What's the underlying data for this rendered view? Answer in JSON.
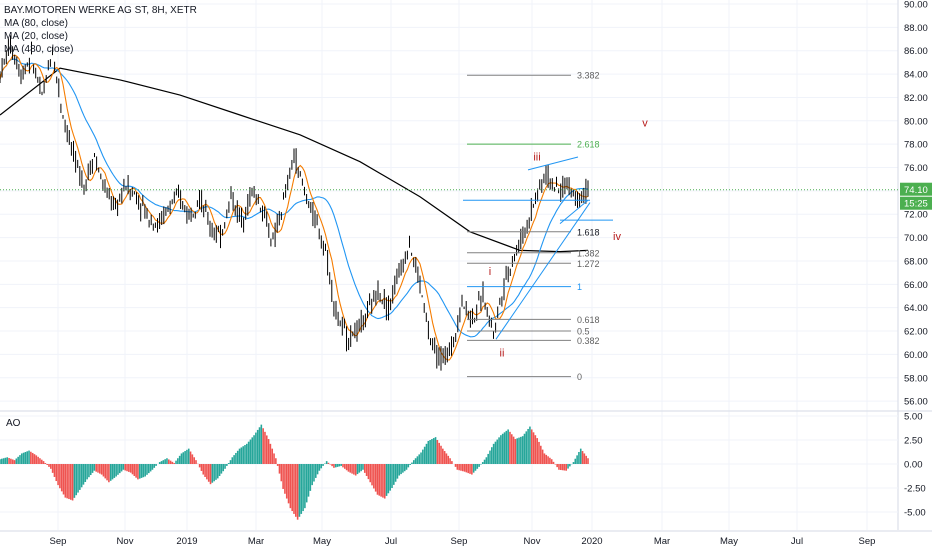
{
  "legend": {
    "symbol": "BAY.MOTOREN WERKE AG ST, 8H, XETR",
    "ma1": "MA (80, close)",
    "ma2": "MA (20, close)",
    "ma3": "MA (480, close)"
  },
  "ao_label": "AO",
  "colors": {
    "price_line": "#4caf50",
    "bar": "#000000",
    "ma80": "#2196f3",
    "ma20": "#f57c00",
    "ma480": "#000000",
    "fib": "#808080",
    "fib_green": "#4caf50",
    "fib_blue": "#2196f3",
    "wave": "#b71c1c",
    "ao_up": "#26a69a",
    "ao_down": "#ef5350"
  },
  "chart_data": [
    {
      "type": "line",
      "name": "price",
      "x_ticks": [
        "Sep",
        "Nov",
        "2019",
        "Mar",
        "May",
        "Jul",
        "Sep",
        "Nov",
        "2020",
        "Mar",
        "May",
        "Jul",
        "Sep"
      ],
      "y_ticks": [
        "90.00",
        "88.00",
        "86.00",
        "84.00",
        "82.00",
        "80.00",
        "78.00",
        "76.00",
        "74.00",
        "72.00",
        "70.00",
        "68.00",
        "66.00",
        "64.00",
        "62.00",
        "60.00",
        "58.00",
        "56.00"
      ],
      "ylim": [
        55,
        90
      ],
      "current_price": "74.10",
      "countdown": "15:25",
      "close_series": [
        84.0,
        86.5,
        84.0,
        85.5,
        82.0,
        86.0,
        80.5,
        77.0,
        74.5,
        77.0,
        74.0,
        72.5,
        74.5,
        73.5,
        72.0,
        71.0,
        72.5,
        73.5,
        72.0,
        73.5,
        71.0,
        70.0,
        73.5,
        71.5,
        74.0,
        72.5,
        69.5,
        73.0,
        77.0,
        74.0,
        71.5,
        69.0,
        63.5,
        61.5,
        62.0,
        63.5,
        65.5,
        64.0,
        67.0,
        69.5,
        66.0,
        61.0,
        59.5,
        60.5,
        64.5,
        63.0,
        65.0,
        62.0,
        66.0,
        68.5,
        70.5,
        73.5,
        75.5,
        74.0,
        74.5,
        73.5,
        74.1
      ],
      "fib_levels": [
        {
          "label": "3.382",
          "value": 83.9
        },
        {
          "label": "2.618",
          "value": 78.0
        },
        {
          "label": "1.618",
          "value": 70.5
        },
        {
          "label": "1.382",
          "value": 68.7
        },
        {
          "label": "1.272",
          "value": 67.8
        },
        {
          "label": "1",
          "value": 65.8
        },
        {
          "label": "0.618",
          "value": 63.0
        },
        {
          "label": "0.5",
          "value": 62.0
        },
        {
          "label": "0.382",
          "value": 61.2
        },
        {
          "label": "0",
          "value": 58.1
        }
      ],
      "waves": [
        "i",
        "ii",
        "iii",
        "iv",
        "v"
      ]
    },
    {
      "type": "bar",
      "name": "AO",
      "y_ticks": [
        "5.00",
        "2.50",
        "0.00",
        "-2.50",
        "-5.00"
      ],
      "ylim": [
        -6.5,
        6.0
      ],
      "values": [
        0.5,
        0.7,
        0.4,
        1.1,
        1.4,
        0.9,
        0.3,
        -0.5,
        -2.2,
        -3.5,
        -3.8,
        -2.7,
        -1.6,
        -0.7,
        -1.1,
        -1.9,
        -1.3,
        -0.6,
        -0.9,
        -1.6,
        -1.3,
        -0.6,
        0.2,
        0.6,
        0.1,
        1.1,
        1.6,
        0.4,
        -1.1,
        -2.1,
        -1.5,
        -0.5,
        0.7,
        1.6,
        2.1,
        3.0,
        4.1,
        2.6,
        0.6,
        -2.6,
        -4.6,
        -5.8,
        -4.6,
        -2.2,
        -0.7,
        0.3,
        -0.4,
        -0.2,
        -0.8,
        -1.2,
        -0.6,
        -1.9,
        -3.2,
        -3.6,
        -2.5,
        -1.2,
        -0.6,
        0.4,
        1.2,
        2.4,
        2.8,
        1.6,
        0.6,
        -0.6,
        -0.8,
        -1.1,
        -0.3,
        0.7,
        2.1,
        3.0,
        3.6,
        2.6,
        2.9,
        3.9,
        2.7,
        1.1,
        0.5,
        -0.6,
        -0.7,
        0.2,
        1.6,
        0.6
      ]
    }
  ]
}
